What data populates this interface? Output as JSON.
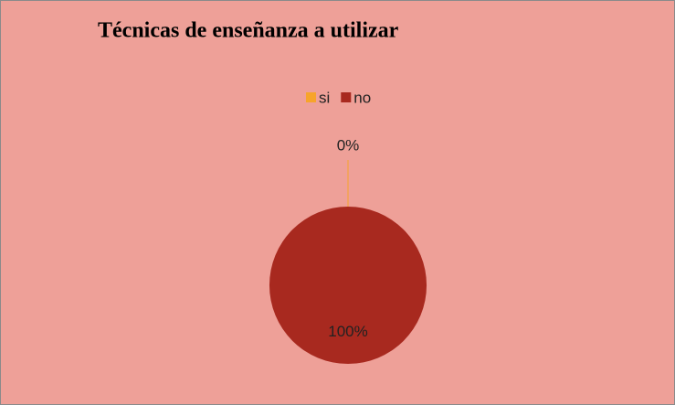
{
  "chart_data": {
    "type": "pie",
    "title": "Técnicas de enseñanza a utilizar",
    "categories": [
      "si",
      "no"
    ],
    "values": [
      0,
      100
    ],
    "value_labels": [
      "0%",
      "100%"
    ],
    "colors": [
      "#f7a42b",
      "#a8291f"
    ],
    "legend": "top"
  }
}
